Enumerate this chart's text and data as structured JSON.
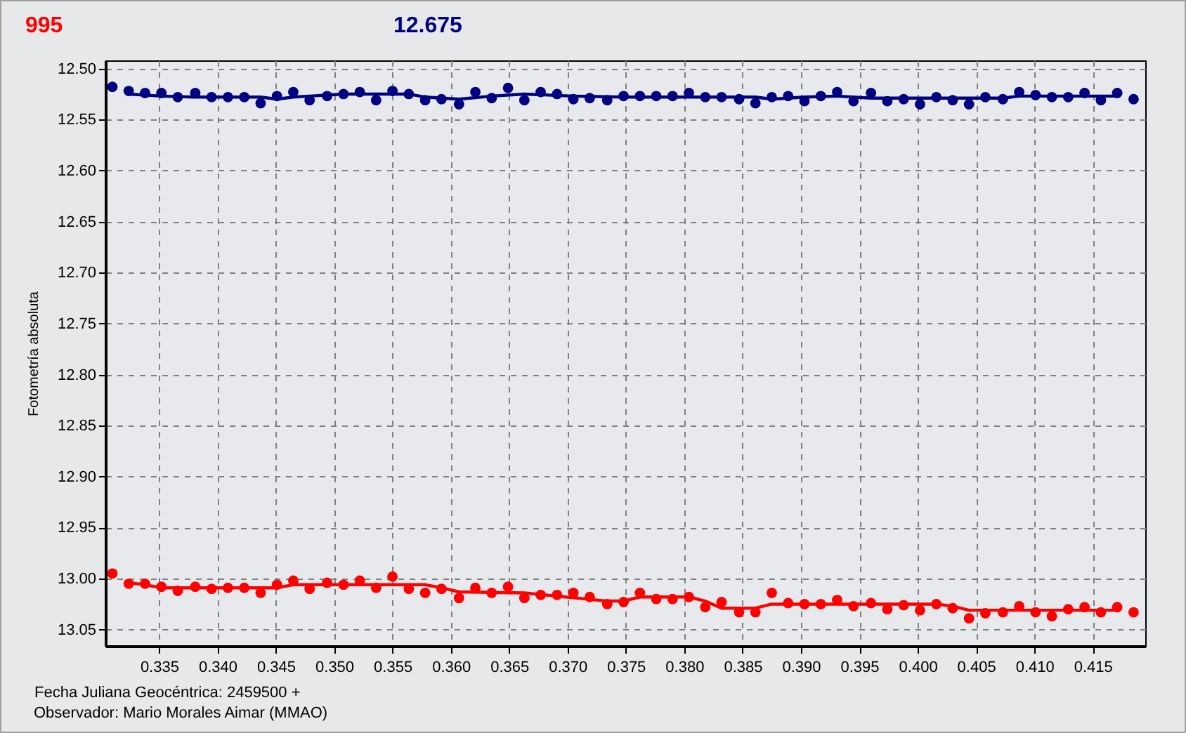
{
  "chart_data": {
    "type": "scatter",
    "title": "995",
    "subtitle": "12.675",
    "xlabel": "Fecha Juliana Geocéntrica: 2459500 +",
    "ylabel": "Fotometría absoluta",
    "annotations": [
      "Observador: Mario Morales Aimar (MMAO)"
    ],
    "x": [
      0.331,
      0.3324,
      0.3338,
      0.3352,
      0.3366,
      0.3381,
      0.3395,
      0.3409,
      0.3423,
      0.3437,
      0.3451,
      0.3465,
      0.3479,
      0.3494,
      0.3508,
      0.3522,
      0.3536,
      0.355,
      0.3564,
      0.3578,
      0.3592,
      0.3607,
      0.3621,
      0.3635,
      0.3649,
      0.3663,
      0.3677,
      0.3691,
      0.3705,
      0.3719,
      0.3734,
      0.3748,
      0.3762,
      0.3776,
      0.379,
      0.3804,
      0.3818,
      0.3832,
      0.3847,
      0.3861,
      0.3875,
      0.3889,
      0.3903,
      0.3917,
      0.3931,
      0.3945,
      0.396,
      0.3974,
      0.3988,
      0.4002,
      0.4016,
      0.403,
      0.4044,
      0.4058,
      0.4073,
      0.4087,
      0.4101,
      0.4115,
      0.4129,
      0.4143,
      0.4157,
      0.4171,
      0.4185
    ],
    "series": [
      {
        "color": "#ff0000",
        "values": [
          12.995,
          13.005,
          13.005,
          13.008,
          13.012,
          13.008,
          13.01,
          13.009,
          13.009,
          13.014,
          13.006,
          13.002,
          13.01,
          13.004,
          13.006,
          13.002,
          13.009,
          12.998,
          13.01,
          13.014,
          13.01,
          13.019,
          13.009,
          13.014,
          13.008,
          13.019,
          13.016,
          13.016,
          13.014,
          13.018,
          13.025,
          13.023,
          13.014,
          13.02,
          13.02,
          13.018,
          13.028,
          13.023,
          13.033,
          13.033,
          13.014,
          13.024,
          13.025,
          13.025,
          13.021,
          13.027,
          13.024,
          13.03,
          13.026,
          13.031,
          13.025,
          13.029,
          13.039,
          13.034,
          13.033,
          13.027,
          13.033,
          13.037,
          13.03,
          13.028,
          13.033,
          13.028,
          13.033
        ]
      },
      {
        "color": "#000080",
        "values": [
          12.518,
          12.522,
          12.524,
          12.524,
          12.528,
          12.524,
          12.528,
          12.528,
          12.528,
          12.534,
          12.527,
          12.523,
          12.531,
          12.527,
          12.525,
          12.523,
          12.531,
          12.522,
          12.525,
          12.531,
          12.53,
          12.535,
          12.523,
          12.529,
          12.519,
          12.531,
          12.523,
          12.525,
          12.53,
          12.529,
          12.531,
          12.527,
          12.527,
          12.527,
          12.527,
          12.524,
          12.528,
          12.528,
          12.53,
          12.534,
          12.528,
          12.527,
          12.532,
          12.527,
          12.523,
          12.532,
          12.524,
          12.532,
          12.53,
          12.535,
          12.528,
          12.531,
          12.535,
          12.528,
          12.53,
          12.523,
          12.526,
          12.528,
          12.528,
          12.524,
          12.531,
          12.524,
          12.53
        ]
      },
      {
        "type": "line",
        "marker": "none",
        "color": "#ff0000",
        "x": [
          0.3324,
          0.3338,
          0.3352,
          0.3451,
          0.3465,
          0.3578,
          0.3592,
          0.3607,
          0.3663,
          0.3734,
          0.3748,
          0.3762,
          0.3804,
          0.3818,
          0.3832,
          0.3861,
          0.3875,
          0.4016,
          0.403,
          0.4044,
          0.4171
        ],
        "values": [
          13.004,
          13.006,
          13.009,
          13.009,
          13.006,
          13.006,
          13.009,
          13.013,
          13.014,
          13.022,
          13.022,
          13.018,
          13.018,
          13.022,
          13.029,
          13.029,
          13.025,
          13.025,
          13.027,
          13.031,
          13.031
        ]
      },
      {
        "type": "line",
        "marker": "none",
        "color": "#000080",
        "x": [
          0.3324,
          0.3352,
          0.3381,
          0.3437,
          0.3451,
          0.3465,
          0.3479,
          0.3508,
          0.3564,
          0.3578,
          0.3607,
          0.3635,
          0.3663,
          0.3705,
          0.3748,
          0.3861,
          0.3875,
          0.3903,
          0.3931,
          0.396,
          0.4073,
          0.4087,
          0.4171
        ],
        "values": [
          12.525,
          12.527,
          12.528,
          12.528,
          12.53,
          12.528,
          12.527,
          12.525,
          12.525,
          12.528,
          12.53,
          12.527,
          12.525,
          12.527,
          12.528,
          12.528,
          12.53,
          12.528,
          12.527,
          12.529,
          12.529,
          12.527,
          12.527
        ]
      }
    ],
    "marker": "circle",
    "line_style": "solid",
    "grid": true,
    "xlim": [
      0.3304,
      0.4195
    ],
    "ylim": [
      13.066,
      12.492
    ],
    "xticks": [
      0.335,
      {
        "value": 0.34,
        "label": "0.340"
      },
      0.345,
      {
        "value": 0.35,
        "label": "0.350"
      },
      0.355,
      {
        "value": 0.36,
        "label": "0.360"
      },
      0.365,
      {
        "value": 0.37,
        "label": "0.370"
      },
      0.375,
      {
        "value": 0.38,
        "label": "0.380"
      },
      0.385,
      {
        "value": 0.39,
        "label": "0.390"
      },
      0.395,
      {
        "value": 0.4,
        "label": "0.400"
      },
      0.405,
      {
        "value": 0.41,
        "label": "0.410"
      },
      0.415
    ],
    "yticks": [
      {
        "value": 12.5,
        "label": "12.50"
      },
      12.55,
      {
        "value": 12.6,
        "label": "12.60"
      },
      12.65,
      {
        "value": 12.7,
        "label": "12.70"
      },
      12.75,
      {
        "value": 12.8,
        "label": "12.80"
      },
      12.85,
      {
        "value": 12.9,
        "label": "12.90"
      },
      12.95,
      {
        "value": 13,
        "label": "13.00"
      },
      13.05
    ]
  }
}
